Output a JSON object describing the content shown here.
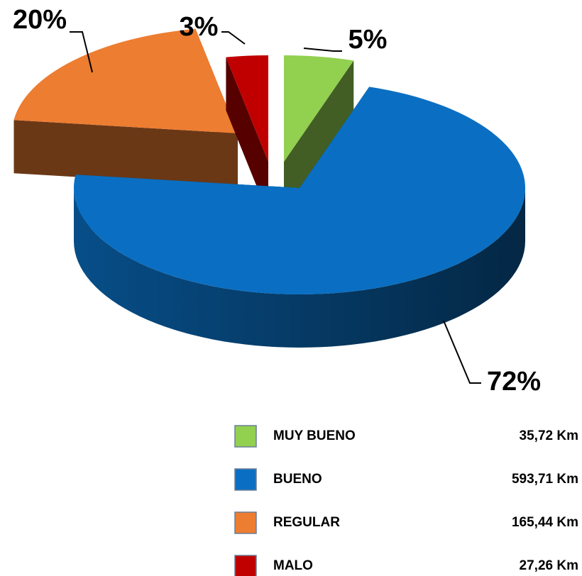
{
  "chart_data": {
    "type": "pie",
    "categories": [
      "MUY  BUENO",
      "BUENO",
      "REGULAR",
      "MALO"
    ],
    "values": [
      5,
      72,
      20,
      3
    ],
    "value_labels": [
      "5%",
      "72%",
      "20%",
      "3%"
    ],
    "lengths": [
      "35,72 Km",
      "593,71 Km",
      "165,44 Km",
      "27,26 Km"
    ],
    "colors": [
      "#92d050",
      "#0a6fc2",
      "#ed7d31",
      "#c00000"
    ]
  }
}
